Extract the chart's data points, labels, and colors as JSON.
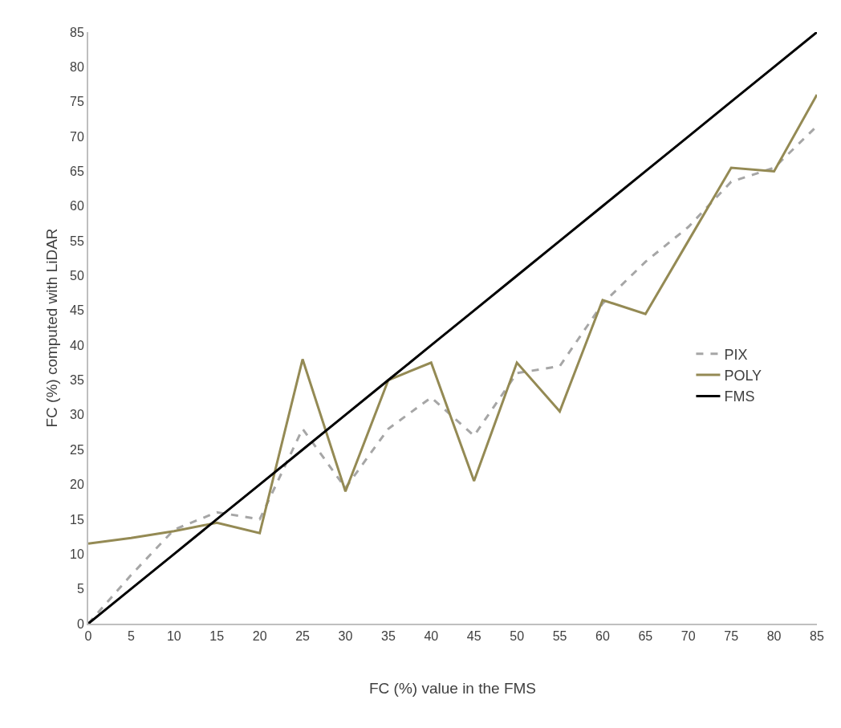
{
  "chart_data": {
    "type": "line",
    "xlabel": "FC (%) value in the FMS",
    "ylabel": "FC (%) computed with LiDAR",
    "x": [
      0,
      5,
      10,
      15,
      20,
      25,
      30,
      35,
      40,
      45,
      50,
      55,
      60,
      65,
      70,
      75,
      80,
      85
    ],
    "series": [
      {
        "name": "PIX",
        "color": "#a6a6a6",
        "line_style": "dashed",
        "values": [
          0,
          7,
          13.5,
          16,
          15,
          28,
          19.5,
          28,
          32.5,
          27,
          36,
          37,
          46,
          52,
          57,
          63.5,
          65.5,
          71.5
        ]
      },
      {
        "name": "POLY",
        "color": "#948a54",
        "line_style": "solid",
        "values": [
          11.5,
          12.3,
          13.3,
          14.5,
          13,
          38,
          19,
          35,
          37.5,
          20.5,
          37.5,
          30.5,
          46.5,
          44.5,
          55,
          65.5,
          65,
          76
        ]
      },
      {
        "name": "FMS",
        "color": "#000000",
        "line_style": "solid",
        "values": [
          0,
          5,
          10,
          15,
          20,
          25,
          30,
          35,
          40,
          45,
          50,
          55,
          60,
          65,
          70,
          75,
          80,
          85
        ]
      }
    ],
    "xlim": [
      0,
      85
    ],
    "xticks": [
      0,
      5,
      10,
      15,
      20,
      25,
      30,
      35,
      40,
      45,
      50,
      55,
      60,
      65,
      70,
      75,
      80,
      85
    ],
    "ylim": [
      0,
      85
    ],
    "yticks": [
      0,
      5,
      10,
      15,
      20,
      25,
      30,
      35,
      40,
      45,
      50,
      55,
      60,
      65,
      70,
      75,
      80,
      85
    ],
    "grid": false,
    "legend": "right",
    "marker": "none"
  }
}
